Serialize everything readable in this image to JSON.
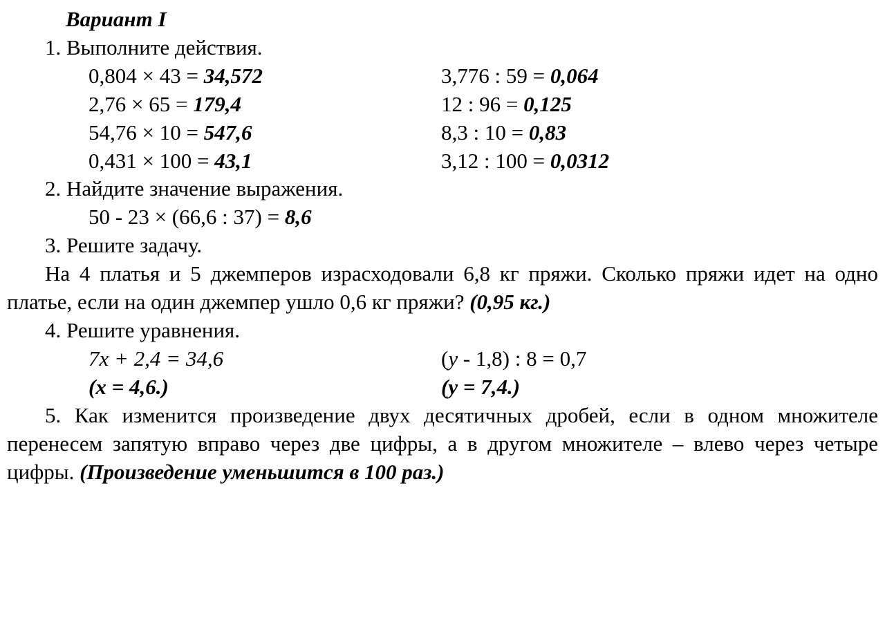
{
  "title": "Вариант I",
  "q1": {
    "prompt": "1. Выполните действия.",
    "left": [
      {
        "expr": "0,804 × 43 = ",
        "ans": "34,572"
      },
      {
        "expr": "2,76 × 65 = ",
        "ans": "179,4"
      },
      {
        "expr": "54,76 × 10 = ",
        "ans": "547,6"
      },
      {
        "expr": "0,431 × 100 = ",
        "ans": "43,1"
      }
    ],
    "right": [
      {
        "expr": "3,776 : 59 = ",
        "ans": "0,064"
      },
      {
        "expr": "12 : 96 = ",
        "ans": "0,125"
      },
      {
        "expr": "8,3 : 10 = ",
        "ans": "0,83"
      },
      {
        "expr": "3,12 : 100 = ",
        "ans": "0,0312"
      }
    ]
  },
  "q2": {
    "prompt": "2. Найдите значение выражения.",
    "expr": "50 - 23 × (66,6 : 37) = ",
    "ans": "8,6"
  },
  "q3": {
    "prompt": "3. Решите задачу.",
    "text_a": "На 4 платья и 5 джемперов израсходовали 6,8 кг пряжи. Сколь­ко пряжи идет на одно платье, если на один джемпер ушло 0,6 кг пряжи? ",
    "ans": "(0,95 кг.)"
  },
  "q4": {
    "prompt": "4. Решите уравнения.",
    "left": {
      "eq": "7x + 2,4 = 34,6",
      "sol": "(x = 4,6.)"
    },
    "right": {
      "eq": "(y - 1,8) : 8 = 0,7",
      "sol": "(y = 7,4.)"
    }
  },
  "q5": {
    "text": "5. Как изменится произведение двух десятичных дробей, если в одном множителе перенесем запятую вправо через две цифры, а в другом множителе – влево через четыре цифры. ",
    "ans": "(Произведение уменьшится в 100 раз.)"
  }
}
